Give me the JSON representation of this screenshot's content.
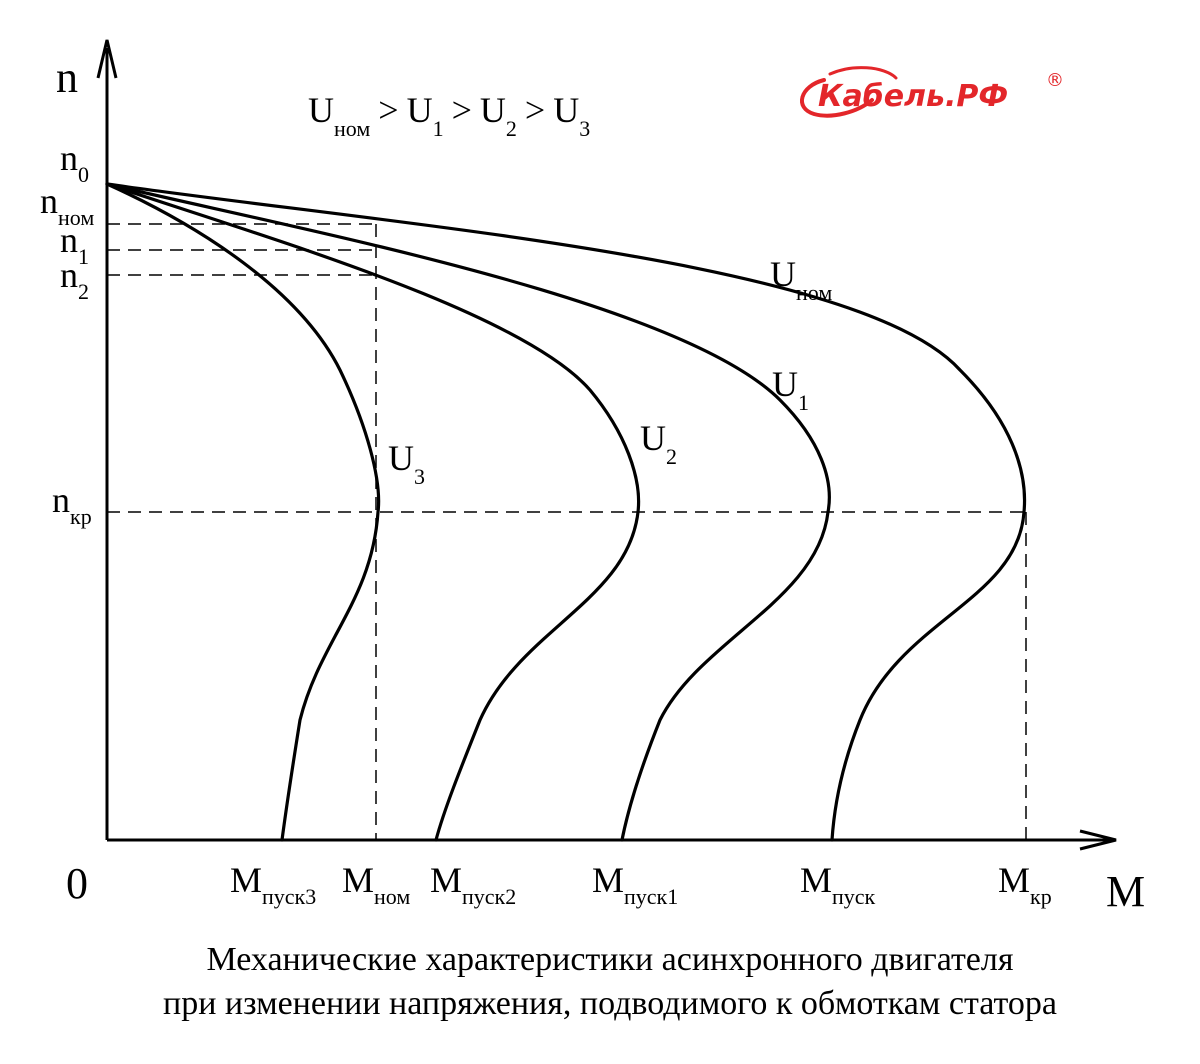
{
  "logo": {
    "text": "Кабель.РФ",
    "registered": "®",
    "color": "#e3262a"
  },
  "axes": {
    "y_label": "n",
    "x_label": "M",
    "origin": "0"
  },
  "relation": {
    "u_main": "U",
    "u_nom_sub": "ном",
    "gt": ">",
    "u1_sub": "1",
    "u2_sub": "2",
    "u3_sub": "3"
  },
  "y_ticks": [
    {
      "main": "n",
      "sub": "0"
    },
    {
      "main": "n",
      "sub": "ном"
    },
    {
      "main": "n",
      "sub": "1"
    },
    {
      "main": "n",
      "sub": "2"
    },
    {
      "main": "n",
      "sub": "кр"
    }
  ],
  "x_ticks": [
    {
      "main": "M",
      "sub": "пуск3"
    },
    {
      "main": "M",
      "sub": "ном"
    },
    {
      "main": "M",
      "sub": "пуск2"
    },
    {
      "main": "M",
      "sub": "пуск1"
    },
    {
      "main": "M",
      "sub": "пуск"
    },
    {
      "main": "M",
      "sub": "кр"
    }
  ],
  "curves": [
    {
      "main": "U",
      "sub": "ном"
    },
    {
      "main": "U",
      "sub": "1"
    },
    {
      "main": "U",
      "sub": "2"
    },
    {
      "main": "U",
      "sub": "3"
    }
  ],
  "caption": {
    "line1": "Механические характеристики асинхронного двигателя",
    "line2": "при изменении напряжения, подводимого к обмоткам статора"
  }
}
